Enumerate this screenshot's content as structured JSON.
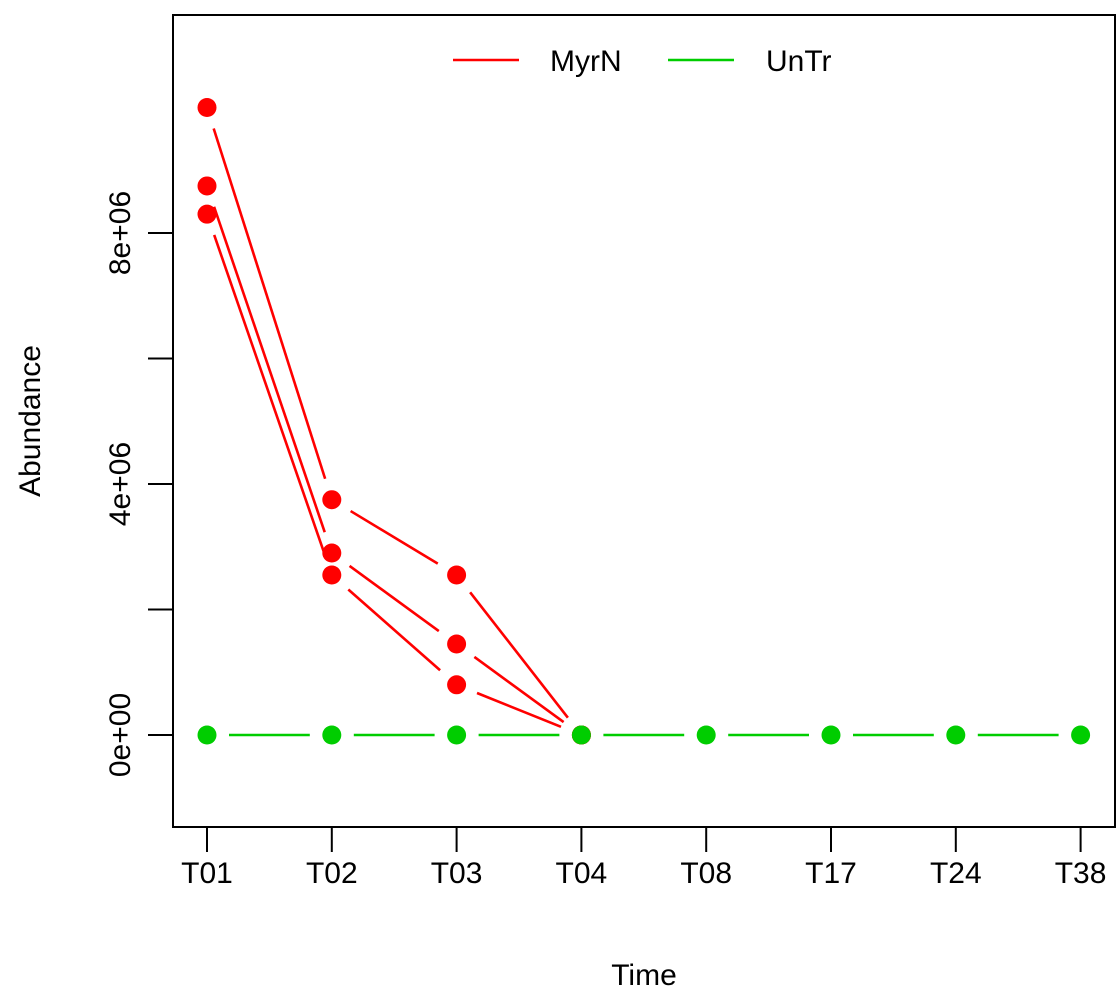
{
  "chart_data": {
    "type": "line",
    "title": "",
    "xlabel": "Time",
    "ylabel": "Abundance",
    "categories": [
      "T01",
      "T02",
      "T03",
      "T04",
      "T08",
      "T17",
      "T24",
      "T38"
    ],
    "ylim": [
      -1400000,
      11400000
    ],
    "yticks": [
      0,
      2000000,
      4000000,
      6000000,
      8000000
    ],
    "ytick_labels": [
      "0e+00",
      "",
      "4e+06",
      "",
      "8e+06"
    ],
    "grid": false,
    "legend": {
      "position": "top-center",
      "frame": false
    },
    "series": [
      {
        "name": "MyrN",
        "color": "#ff0000",
        "values": [
          10000000,
          3750000,
          2550000,
          0,
          null,
          null,
          null,
          null
        ]
      },
      {
        "name": "MyrN",
        "color": "#ff0000",
        "values": [
          8750000,
          2900000,
          1450000,
          0,
          null,
          null,
          null,
          null
        ]
      },
      {
        "name": "MyrN",
        "color": "#ff0000",
        "values": [
          8300000,
          2550000,
          800000,
          0,
          null,
          null,
          null,
          null
        ]
      },
      {
        "name": "UnTr",
        "color": "#00cd00",
        "values": [
          0,
          0,
          0,
          0,
          0,
          0,
          0,
          0
        ]
      }
    ],
    "legend_entries": [
      {
        "label": "MyrN",
        "color": "#ff0000"
      },
      {
        "label": "UnTr",
        "color": "#00cd00"
      }
    ]
  }
}
